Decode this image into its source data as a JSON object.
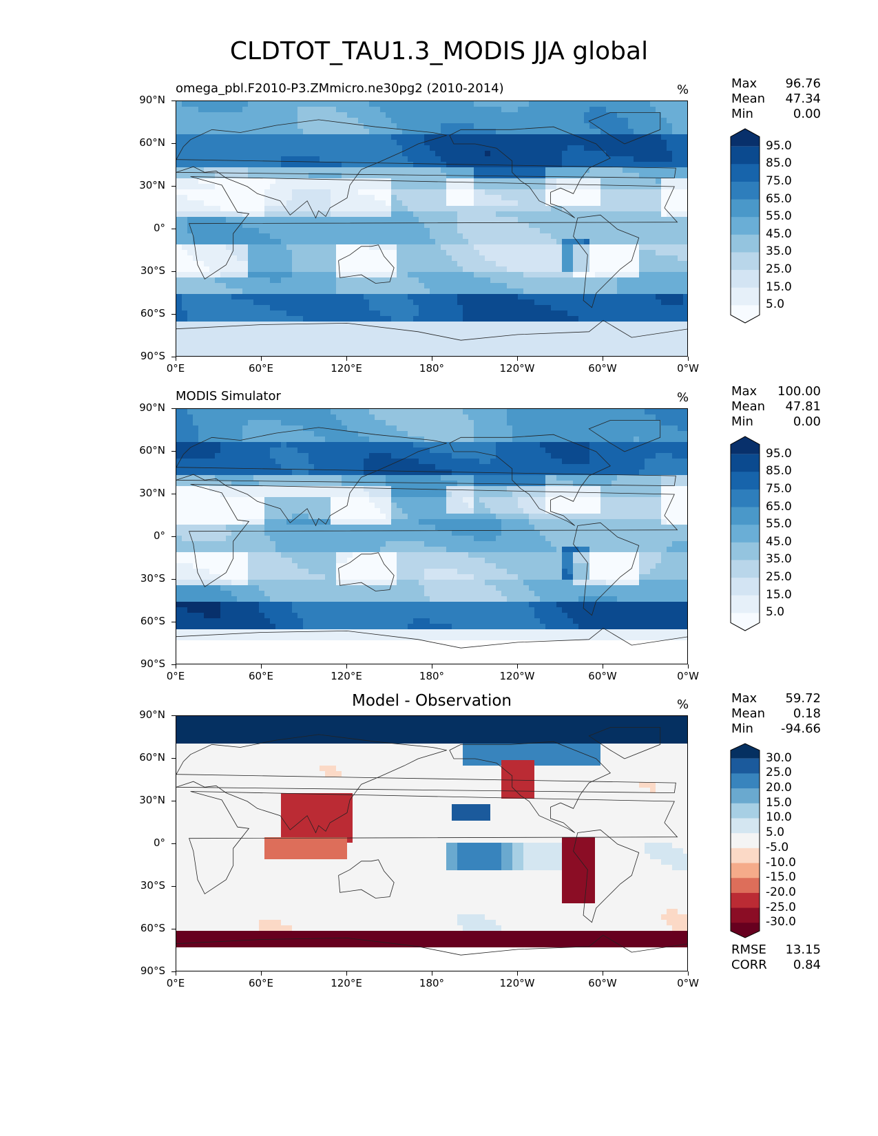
{
  "title": "CLDTOT_TAU1.3_MODIS JJA global",
  "xticks": [
    "0°E",
    "60°E",
    "120°E",
    "180°",
    "120°W",
    "60°W",
    "0°W"
  ],
  "yticks": [
    "90°N",
    "60°N",
    "30°N",
    "0°",
    "30°S",
    "60°S",
    "90°S"
  ],
  "panels": [
    {
      "title": "omega_pbl.F2010-P3.ZMmicro.ne30pg2 (2010-2014)",
      "title_style": "left",
      "unit": "%",
      "stats": [
        [
          "Max",
          "96.76"
        ],
        [
          "Mean",
          "47.34"
        ],
        [
          "Min",
          "0.00"
        ]
      ],
      "colorbar": {
        "labels": [
          "95.0",
          "85.0",
          "75.0",
          "65.0",
          "55.0",
          "45.0",
          "35.0",
          "25.0",
          "15.0",
          "5.0"
        ],
        "colors": [
          "#08306b",
          "#0b4a8f",
          "#1764ab",
          "#2e7ebc",
          "#4a98c9",
          "#6aaed6",
          "#94c4df",
          "#b9d6ea",
          "#d3e4f3",
          "#e6f0f9",
          "#f7fbff"
        ]
      },
      "field": "model"
    },
    {
      "title": "MODIS Simulator",
      "title_style": "left",
      "unit": "%",
      "stats": [
        [
          "Max",
          "100.00"
        ],
        [
          "Mean",
          "47.81"
        ],
        [
          "Min",
          "0.00"
        ]
      ],
      "colorbar": {
        "labels": [
          "95.0",
          "85.0",
          "75.0",
          "65.0",
          "55.0",
          "45.0",
          "35.0",
          "25.0",
          "15.0",
          "5.0"
        ],
        "colors": [
          "#08306b",
          "#0b4a8f",
          "#1764ab",
          "#2e7ebc",
          "#4a98c9",
          "#6aaed6",
          "#94c4df",
          "#b9d6ea",
          "#d3e4f3",
          "#e6f0f9",
          "#f7fbff"
        ]
      },
      "field": "obs"
    },
    {
      "title": "Model - Observation",
      "title_style": "center",
      "unit": "%",
      "stats": [
        [
          "Max",
          "59.72"
        ],
        [
          "Mean",
          "0.18"
        ],
        [
          "Min",
          "-94.66"
        ]
      ],
      "colorbar": {
        "labels": [
          "30.0",
          "25.0",
          "20.0",
          "15.0",
          "10.0",
          "5.0",
          "-5.0",
          "-10.0",
          "-15.0",
          "-20.0",
          "-25.0",
          "-30.0"
        ],
        "colors": [
          "#053061",
          "#1b5a9c",
          "#3884bd",
          "#6aa9cf",
          "#a7cfe4",
          "#d4e6f1",
          "#f4f4f4",
          "#fbd9c6",
          "#f5ab8a",
          "#dd6e5a",
          "#bb2b34",
          "#8b0d25",
          "#67001f"
        ]
      },
      "field": "diff",
      "footer_stats": [
        [
          "RMSE",
          "13.15"
        ],
        [
          "CORR",
          "0.84"
        ]
      ]
    }
  ]
}
